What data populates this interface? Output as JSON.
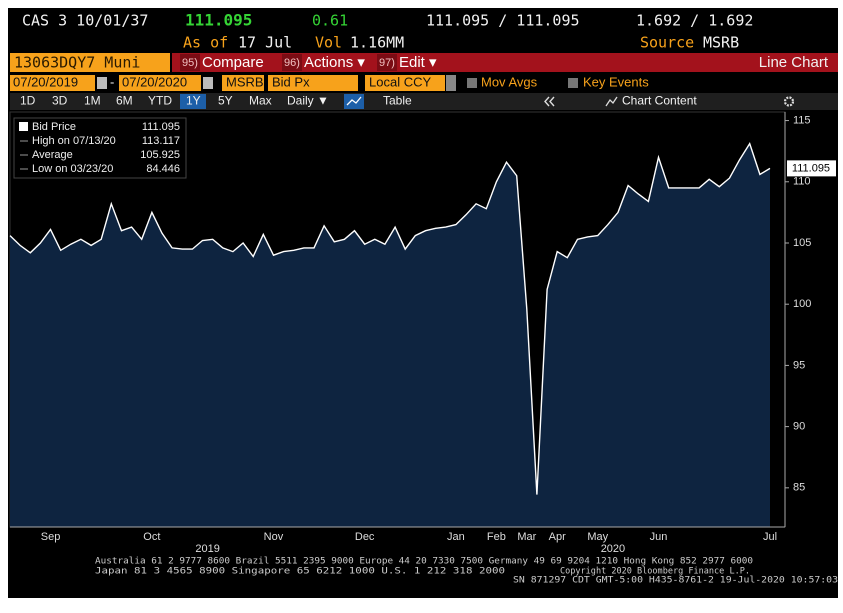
{
  "header": {
    "ticker": "CAS 3 10/01/37",
    "last": "111.095",
    "change": "0.61",
    "bid_ask": "111.095 / 111.095",
    "yield": "1.692 / 1.692",
    "as_of_label": "As of",
    "as_of": "17 Jul",
    "vol_label": "Vol",
    "vol": "1.16MM",
    "source_label": "Source",
    "source": "MSRB"
  },
  "toolbar": {
    "security": "13063DQY7 Muni",
    "buttons": [
      {
        "num": "95)",
        "label": "Compare"
      },
      {
        "num": "96)",
        "label": "Actions ▾"
      },
      {
        "num": "97)",
        "label": "Edit ▾"
      }
    ],
    "view": "Line Chart"
  },
  "settings": {
    "start": "07/20/2019",
    "end": "07/20/2020",
    "separator": "-",
    "pricing_source": "MSRB",
    "field": "Bid Px",
    "currency": "Local CCY",
    "mov_avgs": "Mov Avgs",
    "key_events": "Key Events"
  },
  "periods": {
    "items": [
      "1D",
      "3D",
      "1M",
      "6M",
      "YTD",
      "1Y",
      "5Y",
      "Max"
    ],
    "active": "1Y",
    "frequency": "Daily ▼",
    "table": "Table",
    "chart_content": "Chart Content"
  },
  "chart_data": {
    "type": "area",
    "categories": [
      null,
      null,
      null,
      null,
      "Sep",
      null,
      null,
      null,
      null,
      null,
      null,
      null,
      null,
      null,
      "Oct",
      null,
      null,
      null,
      null,
      null,
      null,
      null,
      null,
      null,
      null,
      null,
      "Nov",
      null,
      null,
      null,
      null,
      null,
      null,
      null,
      null,
      "Dec",
      null,
      null,
      null,
      null,
      null,
      null,
      null,
      null,
      "Jan",
      null,
      null,
      null,
      "Feb",
      null,
      null,
      "Mar",
      null,
      null,
      "Apr",
      null,
      null,
      null,
      "May",
      null,
      null,
      null,
      null,
      null,
      "Jun",
      null,
      null,
      null,
      null,
      null,
      null,
      null,
      null,
      null,
      null,
      "Jul"
    ],
    "values": [
      105.6,
      104.8,
      104.2,
      105.0,
      106.1,
      104.4,
      104.9,
      105.3,
      104.8,
      105.3,
      108.2,
      106.0,
      106.3,
      105.3,
      107.5,
      105.8,
      104.6,
      104.5,
      104.5,
      105.2,
      105.3,
      104.6,
      104.3,
      105.0,
      103.9,
      105.7,
      104.0,
      104.3,
      104.4,
      104.6,
      104.6,
      106.4,
      105.1,
      105.3,
      106.0,
      104.9,
      105.3,
      104.9,
      106.3,
      104.5,
      105.6,
      106.0,
      106.2,
      106.3,
      106.5,
      107.3,
      108.2,
      107.8,
      110.0,
      111.6,
      110.5,
      99.6,
      84.446,
      101.2,
      104.3,
      103.8,
      105.3,
      105.5,
      105.6,
      106.5,
      107.5,
      109.7,
      109.0,
      108.4,
      112.0,
      109.5,
      109.5,
      109.5,
      109.5,
      110.2,
      109.6,
      110.3,
      111.8,
      113.117,
      110.6,
      111.095
    ],
    "color": "#ffffff",
    "fill": "#0e2440",
    "x_groups": [
      {
        "label": "2019",
        "first": "Sep",
        "last": "Dec"
      },
      {
        "label": "2020",
        "first": "Jan",
        "last": "Jul"
      }
    ],
    "ylim": [
      81.8,
      115.7
    ],
    "yticks": [
      85,
      90,
      95,
      100,
      105,
      110,
      115
    ],
    "grid": false,
    "legend": [
      {
        "label": "Bid Price",
        "value": 111.095
      },
      {
        "label": "High on 07/13/20",
        "value": 113.117
      },
      {
        "label": "Average",
        "value": 105.925
      },
      {
        "label": "Low on 03/23/20",
        "value": 84.446
      }
    ]
  },
  "footer": {
    "line1": "Australia 61 2 9777 8600 Brazil 5511 2395 9000 Europe 44 20 7330 7500 Germany 49 69 9204 1210 Hong Kong 852 2977 6000",
    "line2": "Japan 81 3 4565 8900      Singapore 65 6212 1000      U.S. 1 212 318 2000",
    "copyright": "Copyright 2020 Bloomberg Finance L.P.",
    "line3": "SN 871297 CDT  GMT-5:00 H435-8761-2 19-Jul-2020 10:57:03"
  }
}
